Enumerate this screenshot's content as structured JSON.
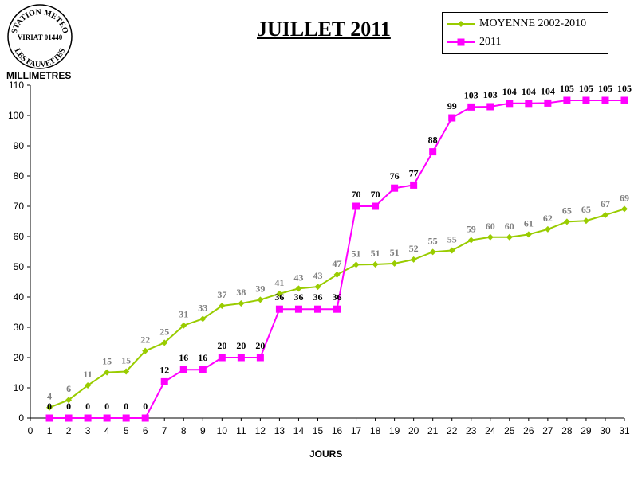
{
  "stamp": {
    "line1": "STATION METEO",
    "line2": "VIRIAT 01440",
    "line3": "LES FAUVETTES"
  },
  "colors": {
    "series_avg": "#99cc00",
    "series_2011": "#ff00ff",
    "label_avg": "#808080",
    "label_2011": "#000000"
  },
  "chart_data": {
    "type": "line",
    "title": "JUILLET 2011",
    "xlabel": "JOURS",
    "ylabel": "MILLIMETRES",
    "xlim": [
      0,
      31
    ],
    "ylim": [
      0,
      110
    ],
    "x_ticks": [
      0,
      1,
      2,
      3,
      4,
      5,
      6,
      7,
      8,
      9,
      10,
      11,
      12,
      13,
      14,
      15,
      16,
      17,
      18,
      19,
      20,
      21,
      22,
      23,
      24,
      25,
      26,
      27,
      28,
      29,
      30,
      31
    ],
    "y_ticks": [
      0,
      10,
      20,
      30,
      40,
      50,
      60,
      70,
      80,
      90,
      100,
      110
    ],
    "grid": false,
    "legend_position": "top-right",
    "x": [
      1,
      2,
      3,
      4,
      5,
      6,
      7,
      8,
      9,
      10,
      11,
      12,
      13,
      14,
      15,
      16,
      17,
      18,
      19,
      20,
      21,
      22,
      23,
      24,
      25,
      26,
      27,
      28,
      29,
      30,
      31
    ],
    "series": [
      {
        "name": "MOYENNE 2002-2010",
        "marker": "diamond",
        "values": [
          3.5,
          6,
          10.8,
          15.1,
          15.4,
          22.2,
          24.9,
          30.6,
          32.8,
          37.1,
          37.9,
          39.1,
          41.1,
          42.8,
          43.4,
          47.4,
          50.7,
          50.8,
          51.1,
          52.4,
          54.9,
          55.4,
          58.8,
          59.8,
          59.8,
          60.7,
          62.4,
          64.9,
          65.2,
          67.1,
          69.1
        ],
        "labels": [
          "4",
          "6",
          "11",
          "15",
          "15",
          "22",
          "25",
          "31",
          "33",
          "37",
          "38",
          "39",
          "41",
          "43",
          "43",
          "47",
          "51",
          "51",
          "51",
          "52",
          "55",
          "55",
          "59",
          "60",
          "60",
          "61",
          "62",
          "65",
          "65",
          "67",
          "69"
        ]
      },
      {
        "name": "2011",
        "marker": "square",
        "values": [
          0,
          0,
          0,
          0,
          0,
          0,
          12,
          16,
          16,
          20,
          20,
          20,
          36,
          36,
          36,
          36,
          70,
          70,
          76,
          77,
          88,
          99.2,
          102.8,
          102.9,
          104,
          104,
          104.1,
          105,
          105,
          105,
          105
        ],
        "labels": [
          "0",
          "0",
          "0",
          "0",
          "0",
          "0",
          "12",
          "16",
          "16",
          "20",
          "20",
          "20",
          "36",
          "36",
          "36",
          "36",
          "70",
          "70",
          "76",
          "77",
          "88",
          "99",
          "103",
          "103",
          "104",
          "104",
          "104",
          "105",
          "105",
          "105",
          "105"
        ]
      }
    ]
  }
}
